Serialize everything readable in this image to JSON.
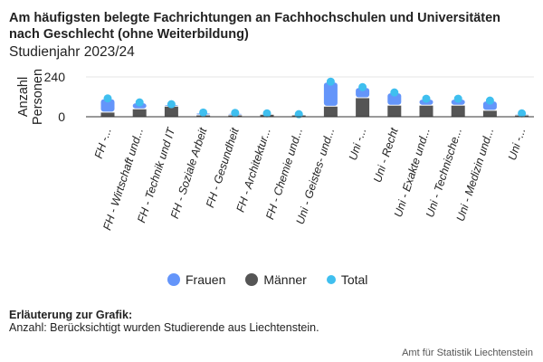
{
  "chart_data": {
    "type": "bar",
    "title": "Am häufigsten belegte Fachrichtungen an Fachhochschulen und Universitäten nach Geschlecht (ohne Weiterbildung)",
    "subtitle": "Studienjahr 2023/24",
    "ylabel": [
      "Anzahl",
      "Personen"
    ],
    "yticks": [
      "0",
      "240"
    ],
    "ylim": [
      0,
      240
    ],
    "categories": [
      "FH -...",
      "FH - Wirtschaft und...",
      "FH - Technik und IT",
      "FH - Soziale Arbeit",
      "FH - Gesundheit",
      "FH - Architektur...",
      "FH - Chemie und...",
      "Uni - Geistes- und...",
      "Uni -...",
      "Uni - Recht",
      "Uni - Exakte und...",
      "Uni - Technische...",
      "Uni - Medizin und...",
      "Uni -..."
    ],
    "series": [
      {
        "name": "Frauen",
        "color": "#6495fa",
        "values": [
          80,
          36,
          9,
          12,
          10,
          3,
          2,
          145,
          61,
          74,
          36,
          36,
          56,
          7
        ]
      },
      {
        "name": "Männer",
        "color": "#555555",
        "values": [
          25,
          45,
          61,
          8,
          8,
          12,
          8,
          61,
          112,
          67,
          67,
          67,
          36,
          8
        ]
      },
      {
        "name": "Total",
        "color": "#3fbfef",
        "values": [
          105,
          81,
          70,
          20,
          18,
          15,
          10,
          206,
          173,
          141,
          103,
          103,
          92,
          15
        ]
      }
    ],
    "legend": "bottom",
    "stacked": true
  },
  "note_heading": "Erläuterung zur Grafik:",
  "note": "Anzahl: Berücksichtigt wurden Studierende aus Liechtenstein.",
  "source": "Amt für Statistik Liechtenstein"
}
